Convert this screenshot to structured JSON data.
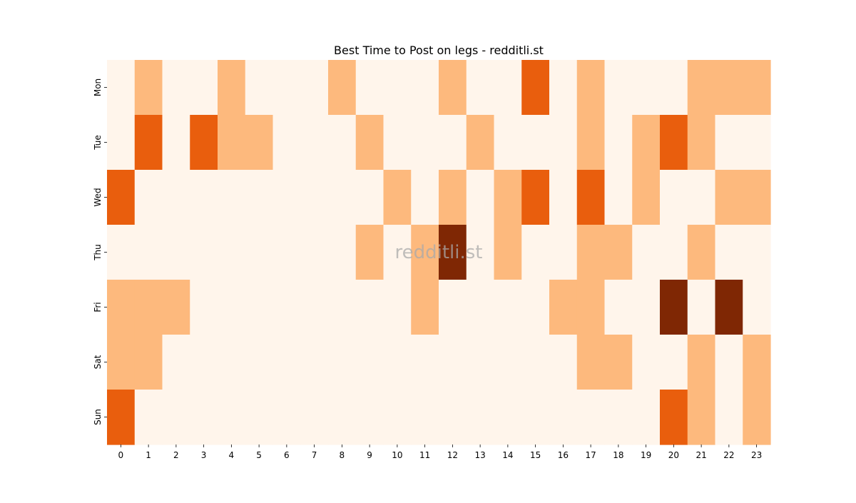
{
  "chart_data": {
    "type": "heatmap",
    "title": "Best Time to Post on legs - redditli.st",
    "xlabel": "",
    "ylabel": "",
    "x_labels": [
      "0",
      "1",
      "2",
      "3",
      "4",
      "5",
      "6",
      "7",
      "8",
      "9",
      "10",
      "11",
      "12",
      "13",
      "14",
      "15",
      "16",
      "17",
      "18",
      "19",
      "20",
      "21",
      "22",
      "23"
    ],
    "y_labels": [
      "Mon",
      "Tue",
      "Wed",
      "Thu",
      "Fri",
      "Sat",
      "Sun"
    ],
    "values": [
      [
        0,
        1,
        0,
        0,
        1,
        0,
        0,
        0,
        1,
        0,
        0,
        0,
        1,
        0,
        0,
        2,
        0,
        1,
        0,
        0,
        0,
        1,
        1,
        1
      ],
      [
        0,
        2,
        0,
        2,
        1,
        1,
        0,
        0,
        0,
        1,
        0,
        0,
        0,
        1,
        0,
        0,
        0,
        1,
        0,
        1,
        2,
        1,
        0,
        0
      ],
      [
        2,
        0,
        0,
        0,
        0,
        0,
        0,
        0,
        0,
        0,
        1,
        0,
        1,
        0,
        1,
        2,
        0,
        2,
        0,
        1,
        0,
        0,
        1,
        1
      ],
      [
        0,
        0,
        0,
        0,
        0,
        0,
        0,
        0,
        0,
        1,
        0,
        1,
        3,
        0,
        1,
        0,
        0,
        1,
        1,
        0,
        0,
        1,
        0,
        0
      ],
      [
        1,
        1,
        1,
        0,
        0,
        0,
        0,
        0,
        0,
        0,
        0,
        1,
        0,
        0,
        0,
        0,
        1,
        1,
        0,
        0,
        3,
        0,
        3,
        0
      ],
      [
        1,
        1,
        0,
        0,
        0,
        0,
        0,
        0,
        0,
        0,
        0,
        0,
        0,
        0,
        0,
        0,
        0,
        1,
        1,
        0,
        0,
        1,
        0,
        1
      ],
      [
        2,
        0,
        0,
        0,
        0,
        0,
        0,
        0,
        0,
        0,
        0,
        0,
        0,
        0,
        0,
        0,
        0,
        0,
        0,
        0,
        2,
        1,
        0,
        1
      ]
    ],
    "colormap": "Oranges",
    "level_colors": [
      "#fff5eb",
      "#fdb97d",
      "#e95e0d",
      "#7f2704"
    ],
    "grid": false,
    "legend": "none",
    "watermark": "redditli.st"
  }
}
